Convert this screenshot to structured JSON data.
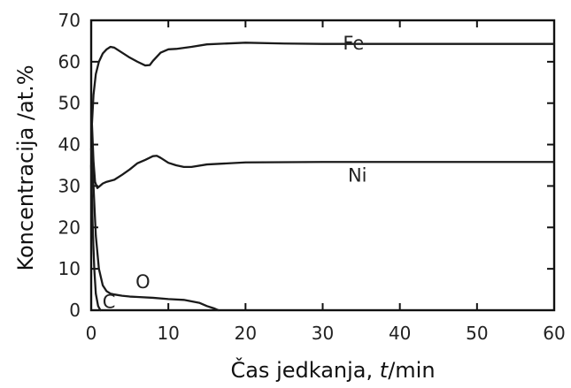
{
  "chart_data": {
    "type": "line",
    "title": "",
    "xlabel": "Čas jedkanja, t/min",
    "xlabel_parts": [
      "Čas jedkanja, ",
      "t",
      "/min"
    ],
    "ylabel": "Koncentracija /at.%",
    "xlim": [
      0,
      60
    ],
    "ylim": [
      0,
      70
    ],
    "x_ticks": [
      0,
      10,
      20,
      30,
      40,
      50,
      60
    ],
    "y_ticks": [
      0,
      10,
      20,
      30,
      40,
      50,
      60,
      70
    ],
    "grid": false,
    "legend": "none",
    "series": [
      {
        "name": "Fe",
        "x": [
          0.1,
          0.3,
          0.6,
          1.0,
          1.5,
          2.0,
          2.5,
          3.0,
          4.0,
          5.0,
          6.0,
          7.0,
          7.6,
          8.0,
          9.0,
          10.0,
          11.0,
          13.0,
          15.0,
          20.0,
          25.0,
          30.0,
          40.0,
          50.0,
          60.0
        ],
        "y": [
          45,
          52,
          57,
          60,
          62,
          63,
          63.6,
          63.4,
          62.2,
          61,
          60,
          59.1,
          59.2,
          60.2,
          62.2,
          63,
          63.1,
          63.6,
          64.2,
          64.6,
          64.4,
          64.3,
          64.3,
          64.3,
          64.3
        ]
      },
      {
        "name": "Ni",
        "x": [
          0.1,
          0.3,
          0.5,
          0.8,
          1.0,
          1.5,
          2.0,
          3.0,
          4.0,
          5.0,
          6.0,
          7.0,
          8.0,
          8.5,
          9.0,
          10.0,
          11.0,
          12.0,
          13.0,
          15.0,
          20.0,
          30.0,
          40.0,
          50.0,
          60.0
        ],
        "y": [
          45,
          36,
          31,
          29.5,
          29.8,
          30.6,
          31,
          31.5,
          32.7,
          34,
          35.5,
          36.3,
          37.2,
          37.3,
          36.8,
          35.6,
          35,
          34.6,
          34.6,
          35.2,
          35.7,
          35.8,
          35.8,
          35.8,
          35.8
        ]
      },
      {
        "name": "O",
        "x": [
          0.0,
          0.3,
          0.6,
          1.0,
          1.5,
          2.0,
          2.5,
          3.0,
          4.0,
          5.0,
          6.0,
          8.0,
          10.0,
          12.0,
          14.0,
          15.0,
          16.0,
          16.5
        ],
        "y": [
          39,
          30,
          18,
          10,
          6,
          4.6,
          4.0,
          3.8,
          3.5,
          3.3,
          3.2,
          3.0,
          2.7,
          2.5,
          1.8,
          1.0,
          0.4,
          0.0
        ]
      },
      {
        "name": "C",
        "x": [
          0.0,
          0.2,
          0.4,
          0.6,
          0.9,
          1.2
        ],
        "y": [
          35,
          20,
          10,
          4,
          1,
          0
        ]
      }
    ],
    "annotations": [
      {
        "text": "Fe",
        "x": 34,
        "y": 63
      },
      {
        "text": "Ni",
        "x": 34.5,
        "y": 31
      },
      {
        "text": "O",
        "x": 6.7,
        "y": 5.3
      },
      {
        "text": "C",
        "x": 2.3,
        "y": 0.5
      }
    ]
  }
}
